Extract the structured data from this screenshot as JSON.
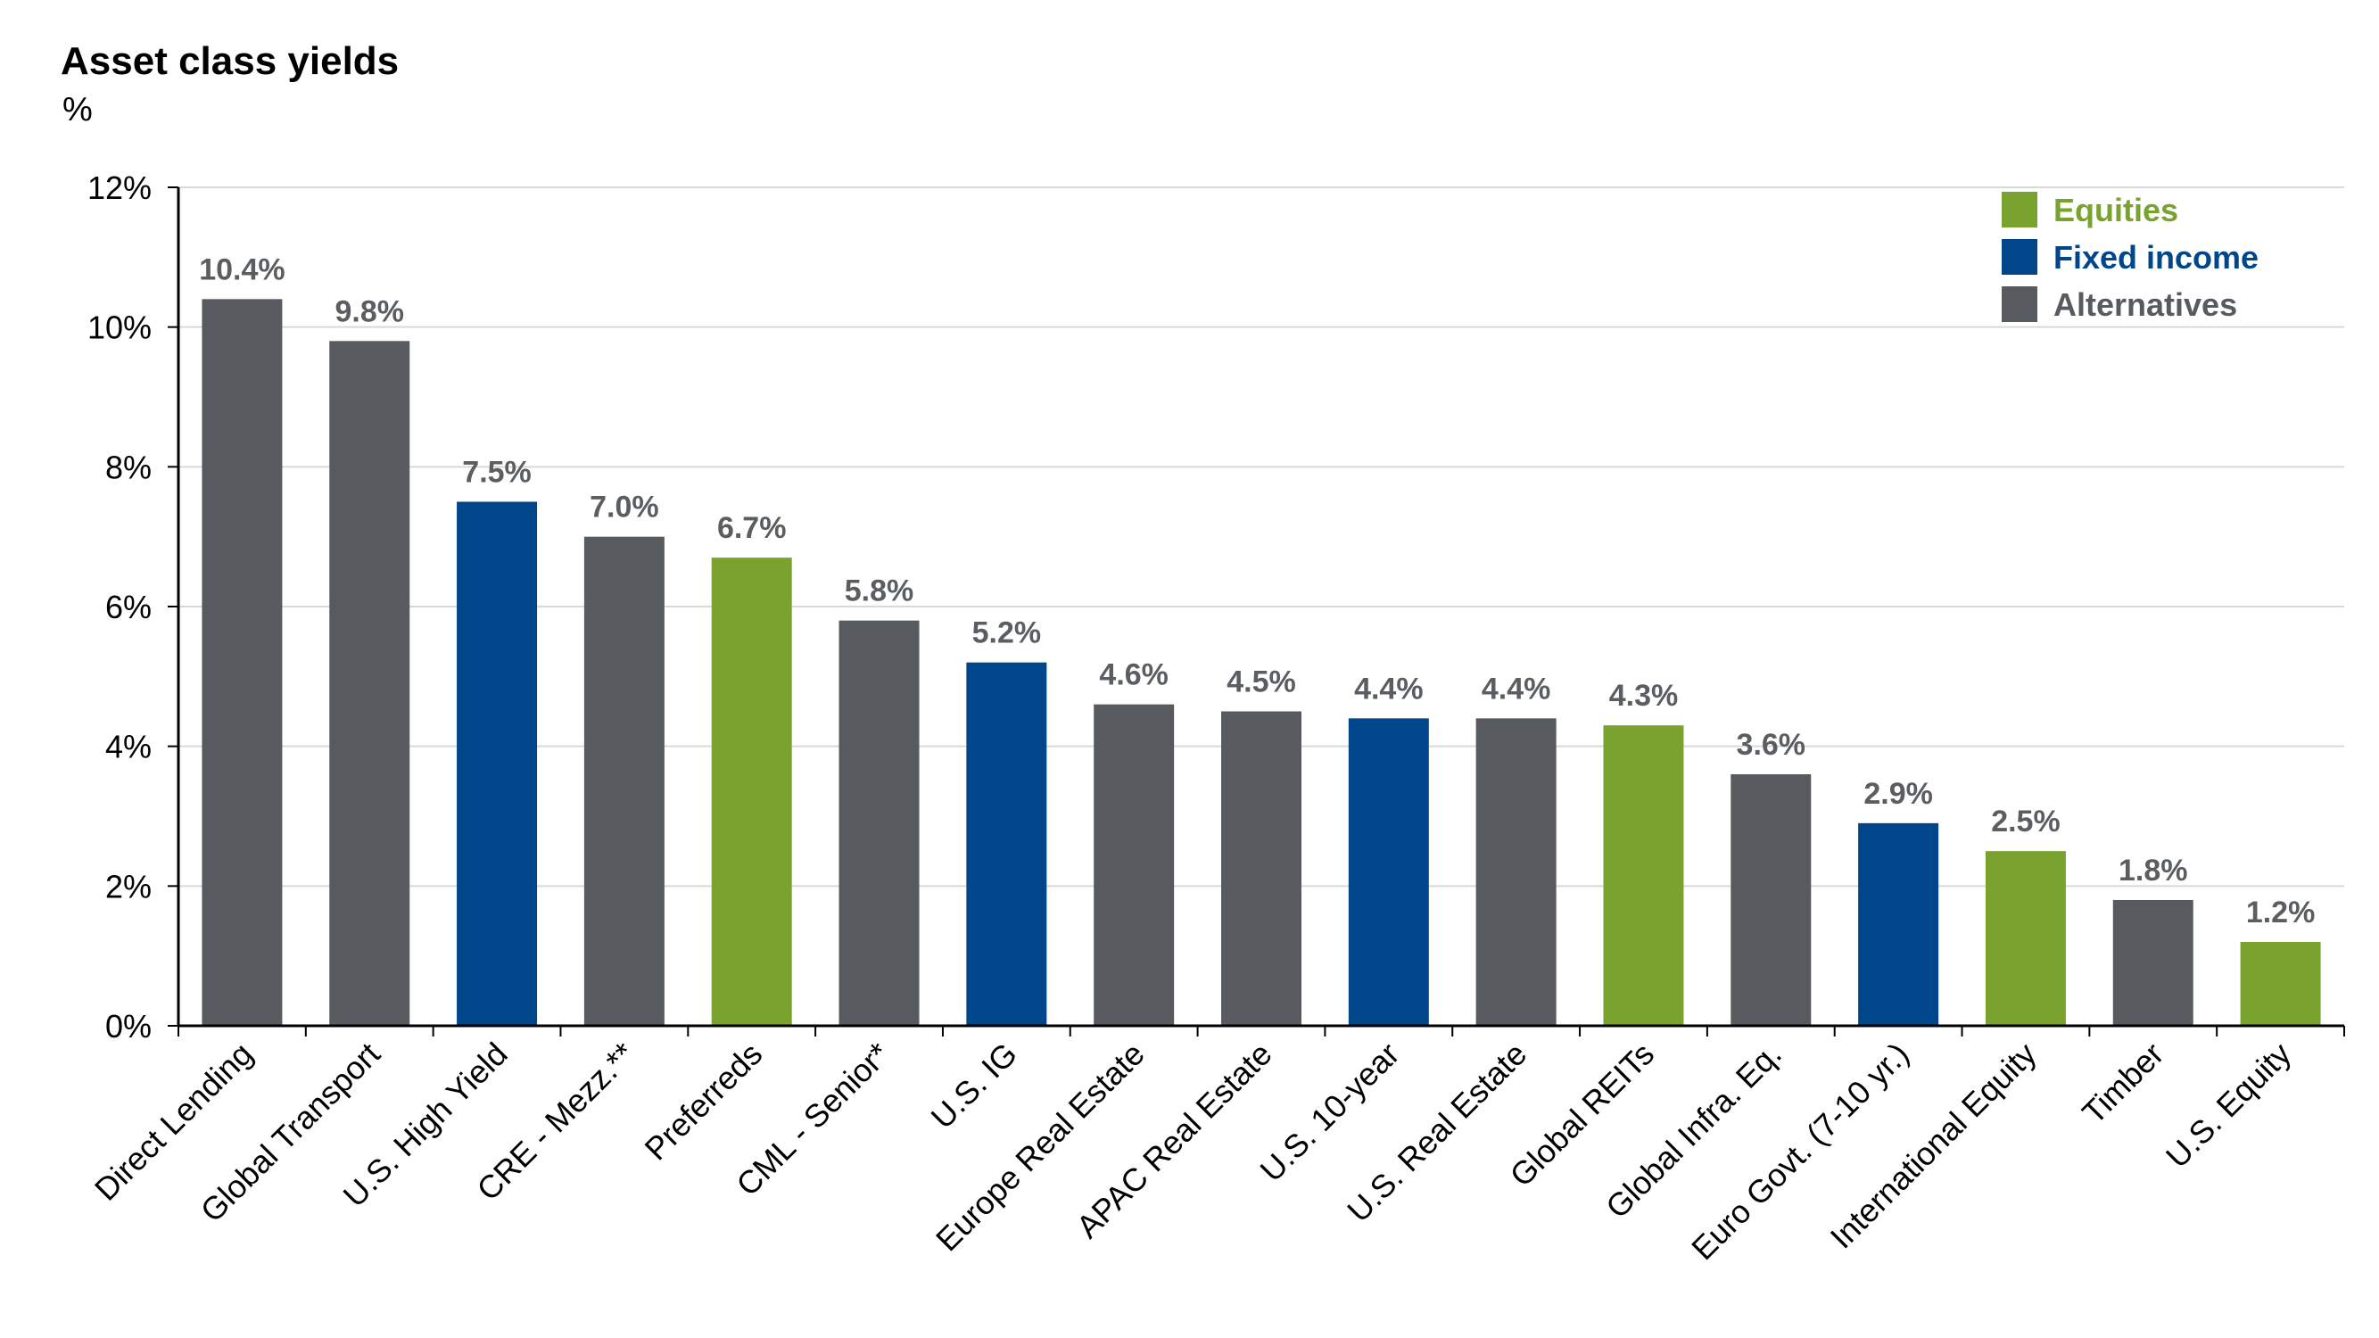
{
  "chart_data": {
    "type": "bar",
    "title": "Asset class yields",
    "ylabel": "%",
    "xlabel": "",
    "ylim": [
      0,
      12
    ],
    "y_ticks": [
      0,
      2,
      4,
      6,
      8,
      10,
      12
    ],
    "y_tick_labels": [
      "0%",
      "2%",
      "4%",
      "6%",
      "8%",
      "10%",
      "12%"
    ],
    "grid": true,
    "legend_position": "top-right",
    "legend": [
      {
        "name": "Equities",
        "color": "#7aa22f"
      },
      {
        "name": "Fixed income",
        "color": "#00468b"
      },
      {
        "name": "Alternatives",
        "color": "#575b5f"
      }
    ],
    "categories": [
      "Direct Lending",
      "Global Transport",
      "U.S. High Yield",
      "CRE - Mezz.**",
      "Preferreds",
      "CML - Senior*",
      "U.S. IG",
      "Europe Real Estate",
      "APAC Real Estate",
      "U.S. 10-year",
      "U.S. Real Estate",
      "Global REITs",
      "Global Infra. Eq.",
      "Euro Govt. (7-10 yr.)",
      "International Equity",
      "Timber",
      "U.S. Equity"
    ],
    "values": [
      10.4,
      9.8,
      7.5,
      7.0,
      6.7,
      5.8,
      5.2,
      4.6,
      4.5,
      4.4,
      4.4,
      4.3,
      3.6,
      2.9,
      2.5,
      1.8,
      1.2
    ],
    "value_labels": [
      "10.4%",
      "9.8%",
      "7.5%",
      "7.0%",
      "6.7%",
      "5.8%",
      "5.2%",
      "4.6%",
      "4.5%",
      "4.4%",
      "4.4%",
      "4.3%",
      "3.6%",
      "2.9%",
      "2.5%",
      "1.8%",
      "1.2%"
    ],
    "groups": [
      "Alternatives",
      "Alternatives",
      "Fixed income",
      "Alternatives",
      "Equities",
      "Alternatives",
      "Fixed income",
      "Alternatives",
      "Alternatives",
      "Fixed income",
      "Alternatives",
      "Equities",
      "Alternatives",
      "Fixed income",
      "Equities",
      "Alternatives",
      "Equities"
    ]
  }
}
